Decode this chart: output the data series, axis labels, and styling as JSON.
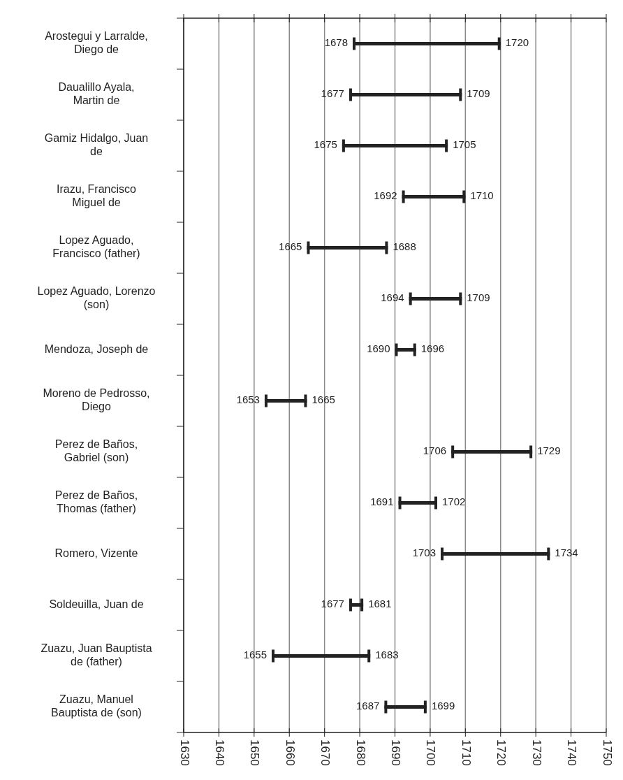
{
  "chart_data": {
    "type": "bar",
    "orientation": "horizontal",
    "categories": [
      "Arostegui y Larralde, Diego de",
      "Daualillo Ayala, Martin de",
      "Gamiz Hidalgo, Juan de",
      "Irazu, Francisco Miguel de",
      "Lopez Aguado, Francisco (father)",
      "Lopez Aguado, Lorenzo (son)",
      "Mendoza, Joseph de",
      "Moreno de Pedrosso, Diego",
      "Perez de Baños, Gabriel (son)",
      "Perez de Baños, Thomas (father)",
      "Romero, Vizente",
      "Soldeuilla, Juan de",
      "Zuazu, Juan Bauptista de (father)",
      "Zuazu, Manuel Bauptista de (son)"
    ],
    "base": [
      1678,
      1677,
      1675,
      1692,
      1665,
      1694,
      1690,
      1653,
      1706,
      1691,
      1703,
      1677,
      1655,
      1687
    ],
    "values": [
      42,
      32,
      30,
      18,
      23,
      15,
      6,
      12,
      23,
      11,
      31,
      4,
      28,
      12
    ],
    "color": "#222222",
    "xlim": [
      1630,
      1750
    ],
    "xticks": [
      1630,
      1640,
      1650,
      1660,
      1670,
      1680,
      1690,
      1700,
      1710,
      1720,
      1730,
      1740,
      1750
    ],
    "grid": "x",
    "annotations": [
      {
        "text": "1678",
        "x": 1678,
        "y": "Arostegui y Larralde, Diego de"
      },
      {
        "text": "1720",
        "x": 1720,
        "y": "Arostegui y Larralde, Diego de"
      },
      {
        "text": "1677",
        "x": 1677,
        "y": "Daualillo Ayala, Martin de"
      },
      {
        "text": "1709",
        "x": 1709,
        "y": "Daualillo Ayala, Martin de"
      },
      {
        "text": "1675",
        "x": 1675,
        "y": "Gamiz Hidalgo, Juan de"
      },
      {
        "text": "1705",
        "x": 1705,
        "y": "Gamiz Hidalgo, Juan de"
      },
      {
        "text": "1692",
        "x": 1692,
        "y": "Irazu, Francisco Miguel de"
      },
      {
        "text": "1710",
        "x": 1710,
        "y": "Irazu, Francisco Miguel de"
      },
      {
        "text": "1665",
        "x": 1665,
        "y": "Lopez Aguado, Francisco (father)"
      },
      {
        "text": "1688",
        "x": 1688,
        "y": "Lopez Aguado, Francisco (father)"
      },
      {
        "text": "1694",
        "x": 1694,
        "y": "Lopez Aguado, Lorenzo (son)"
      },
      {
        "text": "1709",
        "x": 1709,
        "y": "Lopez Aguado, Lorenzo (son)"
      },
      {
        "text": "1690",
        "x": 1690,
        "y": "Mendoza, Joseph de"
      },
      {
        "text": "1696",
        "x": 1696,
        "y": "Mendoza, Joseph de"
      },
      {
        "text": "1653",
        "x": 1653,
        "y": "Moreno de Pedrosso, Diego"
      },
      {
        "text": "1665",
        "x": 1665,
        "y": "Moreno de Pedrosso, Diego"
      },
      {
        "text": "1706",
        "x": 1706,
        "y": "Perez de Baños, Gabriel (son)"
      },
      {
        "text": "1729",
        "x": 1729,
        "y": "Perez de Baños, Gabriel (son)"
      },
      {
        "text": "1691",
        "x": 1691,
        "y": "Perez de Baños, Thomas (father)"
      },
      {
        "text": "1702",
        "x": 1702,
        "y": "Perez de Baños, Thomas (father)"
      },
      {
        "text": "1703",
        "x": 1703,
        "y": "Romero, Vizente"
      },
      {
        "text": "1734",
        "x": 1734,
        "y": "Romero, Vizente"
      },
      {
        "text": "1677",
        "x": 1677,
        "y": "Soldeuilla, Juan de"
      },
      {
        "text": "1681",
        "x": 1681,
        "y": "Soldeuilla, Juan de"
      },
      {
        "text": "1655",
        "x": 1655,
        "y": "Zuazu, Juan Bauptista de (father)"
      },
      {
        "text": "1683",
        "x": 1683,
        "y": "Zuazu, Juan Bauptista de (father)"
      },
      {
        "text": "1687",
        "x": 1687,
        "y": "Zuazu, Manuel Bauptista de (son)"
      },
      {
        "text": "1699",
        "x": 1699,
        "y": "Zuazu, Manuel Bauptista de (son)"
      }
    ]
  }
}
